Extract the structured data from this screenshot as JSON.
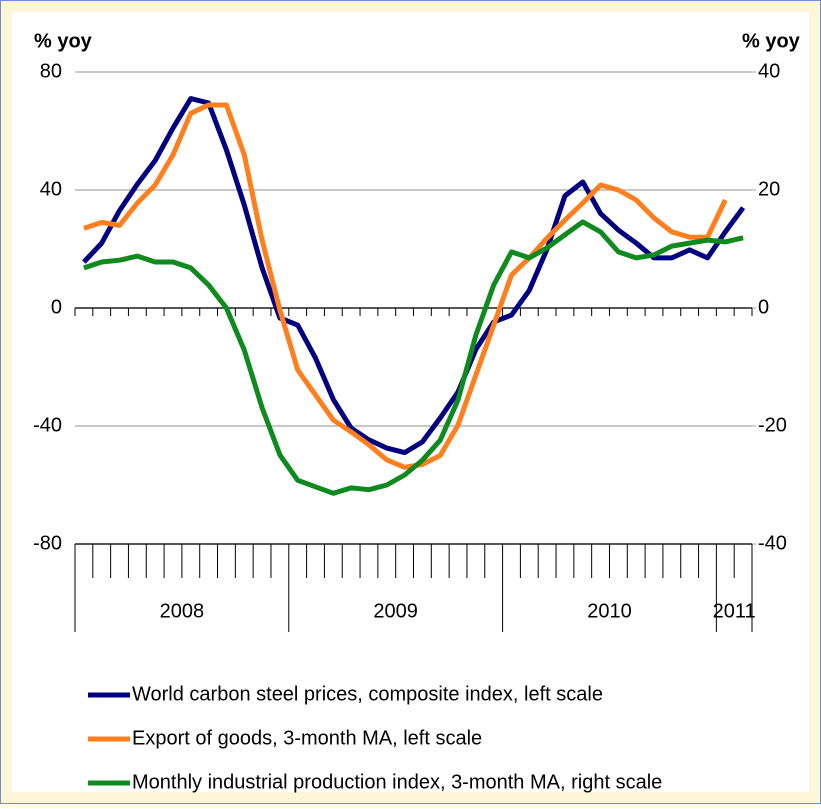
{
  "chart_data": {
    "type": "line",
    "y_label": "% yoy",
    "y2_label": "% yoy",
    "categories": [
      null,
      null,
      null,
      null,
      null,
      null,
      null,
      null,
      null,
      null,
      null,
      null,
      null,
      null,
      null,
      null,
      null,
      null,
      null,
      null,
      null,
      null,
      null,
      null,
      null,
      null,
      null,
      null,
      null,
      null,
      null,
      null,
      null,
      null,
      null,
      null,
      null,
      null
    ],
    "category_groups": [
      {
        "label": "2008",
        "count": 12
      },
      {
        "label": "2009",
        "count": 12
      },
      {
        "label": "2010",
        "count": 12
      },
      {
        "label": "2011",
        "count": 2
      }
    ],
    "ylim": [
      -80,
      80
    ],
    "yticks": [
      -80,
      -40,
      0,
      40,
      80
    ],
    "y2lim": [
      -40,
      40
    ],
    "y2ticks": [
      -40,
      -20,
      0,
      20,
      40
    ],
    "grid": true,
    "legend": "bottom",
    "series": [
      {
        "name": "World carbon steel prices, composite index, left scale",
        "color": "#000080",
        "values": [
          15.6,
          22,
          33,
          42,
          50,
          61,
          71,
          69.5,
          53.6,
          35,
          13.6,
          -3.4,
          -5.8,
          -17,
          -31,
          -40.7,
          -44.7,
          -47.5,
          -49,
          -45.4,
          -37.3,
          -28.5,
          -14,
          -4.7,
          -2.4,
          6,
          20,
          38,
          42.7,
          32,
          26.4,
          22,
          17,
          17,
          19.7,
          17,
          25.8,
          34
        ]
      },
      {
        "name": "Export of goods, 3-month MA, left scale",
        "color": "#ff7f1e",
        "values": [
          27,
          29,
          28,
          35.6,
          41.7,
          51.9,
          66,
          68.8,
          68.8,
          52,
          23,
          -0.7,
          -21,
          -29.5,
          -38,
          -42,
          -46.4,
          -51.5,
          -54,
          -53,
          -50,
          -39.7,
          -22.7,
          -5.8,
          11.2,
          17,
          23.7,
          29.8,
          35.6,
          41.7,
          40,
          36.6,
          30.5,
          25.8,
          24,
          24,
          36.6,
          null
        ]
      },
      {
        "name": "Monthly industrial production index, 3-month MA, right scale",
        "color": "#0f8a1e",
        "axis": "y2",
        "values": [
          6.8,
          7.8,
          8.1,
          8.8,
          7.8,
          7.8,
          6.8,
          3.9,
          0,
          -7.1,
          -16.9,
          -24.9,
          -29.2,
          -30.3,
          -31.4,
          -30.5,
          -30.8,
          -30,
          -28.3,
          -25.8,
          -22.4,
          -15.6,
          -4.6,
          3.9,
          9.5,
          8.5,
          10.2,
          12.4,
          14.6,
          12.9,
          9.5,
          8.5,
          9,
          10.5,
          11,
          11.5,
          11.2,
          11.9
        ]
      }
    ]
  }
}
